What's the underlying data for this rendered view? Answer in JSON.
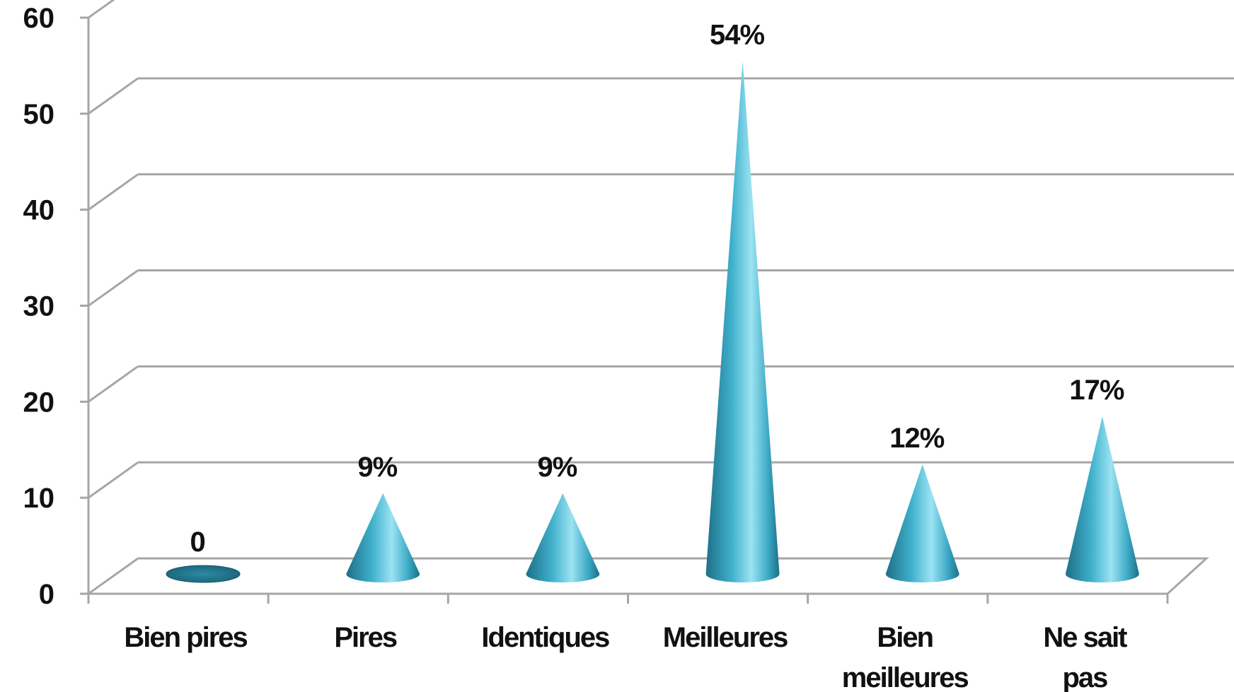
{
  "chart_data": {
    "type": "bar",
    "style": "3d-cone",
    "categories": [
      "Bien pires",
      "Pires",
      "Identiques",
      "Meilleures",
      "Bien meilleures",
      "Ne sait pas"
    ],
    "category_lines": [
      [
        "Bien pires"
      ],
      [
        "Pires"
      ],
      [
        "Identiques"
      ],
      [
        "Meilleures"
      ],
      [
        "Bien",
        "meilleures"
      ],
      [
        "Ne sait",
        "pas"
      ]
    ],
    "values": [
      0,
      9,
      9,
      54,
      12,
      17
    ],
    "data_labels": [
      "0",
      "9%",
      "9%",
      "54%",
      "12%",
      "17%"
    ],
    "yticks": [
      "0",
      "10",
      "20",
      "30",
      "40",
      "50",
      "60"
    ],
    "ylim": [
      0,
      60
    ],
    "grid": true,
    "legend": "none",
    "title": "",
    "xlabel": "",
    "ylabel": "",
    "colors": {
      "cone": "#3fb0cc",
      "cone_dark": "#1e6f86",
      "cone_light": "#9be3f2",
      "grid": "#a6a6a6"
    }
  }
}
